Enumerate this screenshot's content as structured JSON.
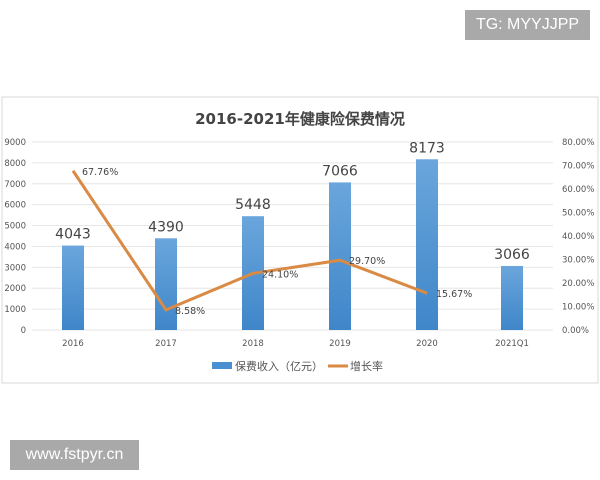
{
  "watermarks": {
    "top_right": "TG: MYYJJPP",
    "bottom_left": "www.fstpyr.cn"
  },
  "chart_data": {
    "type": "bar+line",
    "title": "2016-2021年健康险保费情况",
    "categories": [
      "2016",
      "2017",
      "2018",
      "2019",
      "2020",
      "2021Q1"
    ],
    "series": [
      {
        "name": "保费收入（亿元）",
        "type": "bar",
        "axis": "left",
        "color": "#4a8fd0",
        "values": [
          4043,
          4390,
          5448,
          7066,
          8173,
          3066
        ],
        "labels": [
          "4043",
          "4390",
          "5448",
          "7066",
          "8173",
          "3066"
        ]
      },
      {
        "name": "增长率",
        "type": "line",
        "axis": "right",
        "color": "#d98a45",
        "values": [
          67.76,
          8.58,
          24.1,
          29.7,
          15.67,
          null
        ],
        "labels": [
          "67.76%",
          "8.58%",
          "24.10%",
          "29.70%",
          "15.67%",
          null
        ]
      }
    ],
    "y_left": {
      "range": [
        0,
        9000
      ],
      "ticks": [
        "0",
        "1000",
        "2000",
        "3000",
        "4000",
        "5000",
        "6000",
        "7000",
        "8000",
        "9000"
      ]
    },
    "y_right": {
      "range": [
        0,
        80
      ],
      "ticks": [
        "0.00%",
        "10.00%",
        "20.00%",
        "30.00%",
        "40.00%",
        "50.00%",
        "60.00%",
        "70.00%",
        "80.00%"
      ]
    },
    "grid": true,
    "legend": "bottom"
  }
}
